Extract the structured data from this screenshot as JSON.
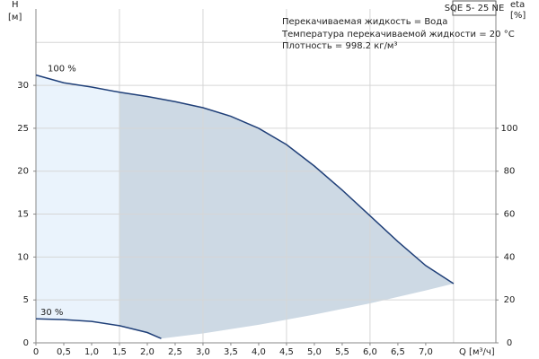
{
  "chart_data": {
    "type": "line",
    "title": "SQE 5- 25 NE",
    "annotations": [
      "Перекачиваемая жидкость = Вода",
      "Температура перекачиваемой жидкости = 20 °C",
      "Плотность = 998.2 кг/м³"
    ],
    "y_label": [
      "H",
      "[м]"
    ],
    "y2_label": [
      "eta",
      "[%]"
    ],
    "x_label": "Q [м³/ч]",
    "xlim": [
      0,
      8.26
    ],
    "ylim": [
      0,
      38.9
    ],
    "y2lim": [
      0,
      155.6
    ],
    "xticks": [
      0,
      {
        "value": 0.5,
        "label": "0,5"
      },
      {
        "value": 1.0,
        "label": "1,0"
      },
      {
        "value": 1.5,
        "label": "1,5"
      },
      {
        "value": 2.0,
        "label": "2,0"
      },
      {
        "value": 2.5,
        "label": "2,5"
      },
      {
        "value": 3.0,
        "label": "3,0"
      },
      {
        "value": 3.5,
        "label": "3,5"
      },
      {
        "value": 4.0,
        "label": "4,0"
      },
      {
        "value": 4.5,
        "label": "4,5"
      },
      {
        "value": 5.0,
        "label": "5,0"
      },
      {
        "value": 5.5,
        "label": "5,5"
      },
      {
        "value": 6.0,
        "label": "6,0"
      },
      {
        "value": 6.5,
        "label": "6,5"
      },
      {
        "value": 7.0,
        "label": "7,0"
      }
    ],
    "yticks": [
      0,
      5,
      10,
      15,
      20,
      25,
      30
    ],
    "y2ticks": [
      0,
      20,
      40,
      60,
      80,
      100
    ],
    "xgrid": [
      1.5,
      3,
      4.5,
      6,
      7.5
    ],
    "ygrid": [
      5,
      10,
      15,
      20,
      25,
      30,
      35
    ],
    "split_q": 1.5,
    "series": [
      {
        "name": "100 %",
        "color": "#1f3f78",
        "x": [
          0,
          0.5,
          1.0,
          1.5,
          2.0,
          2.5,
          3.0,
          3.5,
          4.0,
          4.5,
          5.0,
          5.5,
          6.0,
          6.5,
          7.0,
          7.5
        ],
        "values": [
          31.2,
          30.3,
          29.8,
          29.2,
          28.7,
          28.1,
          27.4,
          26.4,
          25.0,
          23.1,
          20.6,
          17.8,
          14.8,
          11.8,
          9.0,
          6.9
        ]
      },
      {
        "name": "30 %",
        "color": "#1f3f78",
        "x": [
          0,
          0.5,
          1.0,
          1.5,
          2.0,
          2.25
        ],
        "values": [
          2.8,
          2.7,
          2.5,
          2.0,
          1.2,
          0.5
        ]
      }
    ],
    "boundary": {
      "x": [
        2.25,
        3.0,
        4.0,
        5.0,
        6.0,
        7.0,
        7.5
      ],
      "values": [
        0.5,
        1.1,
        2.1,
        3.3,
        4.6,
        6.1,
        6.9
      ]
    },
    "fill_colors": [
      "#eaf3fc",
      "#cdd9e4"
    ]
  }
}
